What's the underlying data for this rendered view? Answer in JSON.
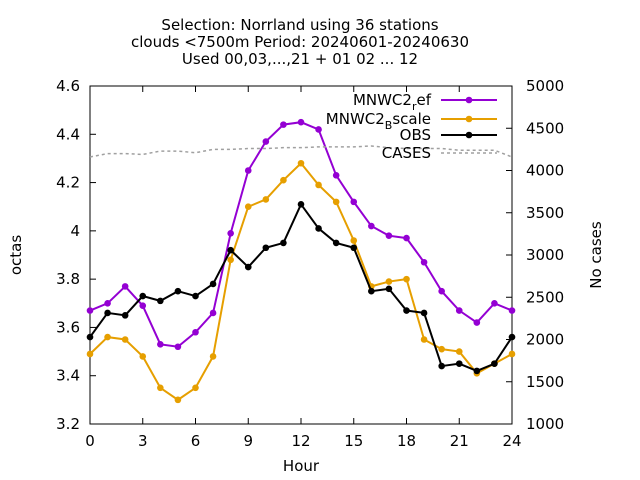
{
  "chart_data": {
    "type": "line",
    "title": [
      "Selection: Norrland using    36 stations",
      "clouds <7500m   Period: 20240601-20240630",
      "Used 00,03,...,21 + 01 02 ... 12"
    ],
    "xlabel": "Hour",
    "ylabel": "octas",
    "y2label": "No cases",
    "xlim": [
      0,
      24
    ],
    "ylim": [
      3.2,
      4.6
    ],
    "y2lim": [
      1000,
      5000
    ],
    "xticks": [
      "0",
      "3",
      "6",
      "9",
      "12",
      "15",
      "18",
      "21",
      "24"
    ],
    "yticks": [
      "3.2",
      "3.4",
      "3.6",
      "3.8",
      "4",
      "4.2",
      "4.4",
      "4.6"
    ],
    "y2ticks": [
      "1000",
      "1500",
      "2000",
      "2500",
      "3000",
      "3500",
      "4000",
      "4500",
      "5000"
    ],
    "grid": false,
    "legend_position": "top-right",
    "x": [
      0,
      1,
      2,
      3,
      4,
      5,
      6,
      7,
      8,
      9,
      10,
      11,
      12,
      13,
      14,
      15,
      16,
      17,
      18,
      19,
      20,
      21,
      22,
      23,
      24
    ],
    "series": [
      {
        "name": "MNWC2",
        "name_sub": "r",
        "name_rest": "ef",
        "color": "#9400d3",
        "axis": "y",
        "values": [
          3.67,
          3.7,
          3.77,
          3.69,
          3.53,
          3.52,
          3.58,
          3.66,
          3.99,
          4.25,
          4.37,
          4.44,
          4.45,
          4.42,
          4.23,
          4.12,
          4.02,
          3.98,
          3.97,
          3.87,
          3.75,
          3.67,
          3.62,
          3.7,
          3.67
        ]
      },
      {
        "name": "MNWC2",
        "name_sub": "B",
        "name_rest": "scale",
        "color": "#e69f00",
        "axis": "y",
        "values": [
          3.49,
          3.56,
          3.55,
          3.48,
          3.35,
          3.3,
          3.35,
          3.48,
          3.88,
          4.1,
          4.13,
          4.21,
          4.28,
          4.19,
          4.12,
          3.96,
          3.77,
          3.79,
          3.8,
          3.55,
          3.51,
          3.5,
          3.41,
          3.45,
          3.49
        ]
      },
      {
        "name": "OBS",
        "color": "#000000",
        "axis": "y",
        "values": [
          3.56,
          3.66,
          3.65,
          3.73,
          3.71,
          3.75,
          3.73,
          3.78,
          3.92,
          3.85,
          3.93,
          3.95,
          4.11,
          4.01,
          3.95,
          3.93,
          3.75,
          3.76,
          3.67,
          3.66,
          3.44,
          3.45,
          3.42,
          3.45,
          3.56
        ]
      },
      {
        "name": "CASES",
        "color": "#a0a0a0",
        "axis": "y2",
        "dashed": true,
        "values": [
          4160,
          4200,
          4200,
          4190,
          4230,
          4230,
          4210,
          4250,
          4250,
          4260,
          4260,
          4270,
          4270,
          4280,
          4280,
          4280,
          4290,
          4270,
          4260,
          4260,
          4260,
          4240,
          4240,
          4240,
          4160
        ]
      }
    ]
  }
}
